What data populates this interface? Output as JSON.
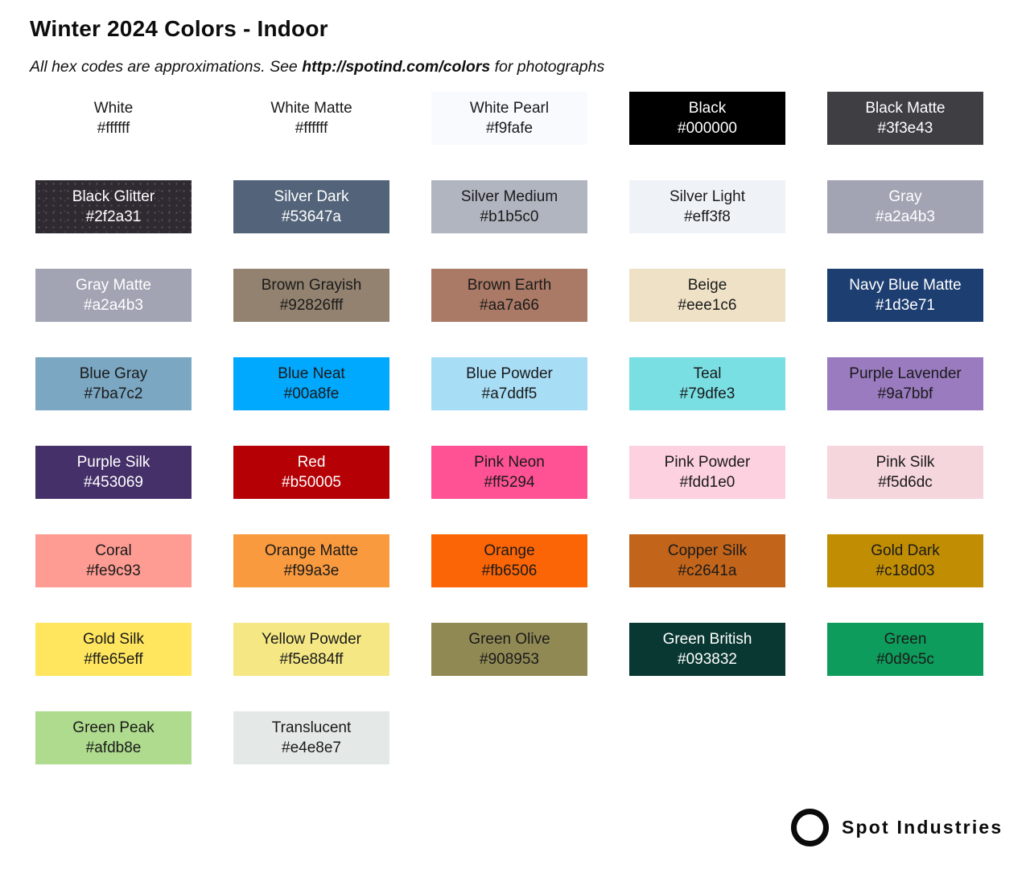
{
  "header": {
    "title": "Winter 2024 Colors - Indoor",
    "subtitle_prefix": "All hex codes are approximations. See ",
    "subtitle_link": "http://spotind.com/colors",
    "subtitle_suffix": " for photographs"
  },
  "footer": {
    "brand": "Spot Industries",
    "logo_icon": "circle-ring-icon"
  },
  "text_colors": {
    "dark": "#1a1a1a",
    "light": "#ffffff"
  },
  "swatches": [
    {
      "name": "White",
      "hex": "#ffffff",
      "fill": "#ffffff",
      "text": "dark",
      "texture": "none"
    },
    {
      "name": "White Matte",
      "hex": "#ffffff",
      "fill": "#ffffff",
      "text": "dark",
      "texture": "none"
    },
    {
      "name": "White Pearl",
      "hex": "#f9fafe",
      "fill": "#f9fafe",
      "text": "dark",
      "texture": "none"
    },
    {
      "name": "Black",
      "hex": "#000000",
      "fill": "#000000",
      "text": "light",
      "texture": "none"
    },
    {
      "name": "Black Matte",
      "hex": "#3f3e43",
      "fill": "#3f3e43",
      "text": "light",
      "texture": "none"
    },
    {
      "name": "Black Glitter",
      "hex": "#2f2a31",
      "fill": "#2f2a31",
      "text": "light",
      "texture": "glitter"
    },
    {
      "name": "Silver Dark",
      "hex": "#53647a",
      "fill": "#53647a",
      "text": "light",
      "texture": "none"
    },
    {
      "name": "Silver Medium",
      "hex": "#b1b5c0",
      "fill": "#b1b5c0",
      "text": "dark",
      "texture": "none"
    },
    {
      "name": "Silver Light",
      "hex": "#eff3f8",
      "fill": "#eff3f8",
      "text": "dark",
      "texture": "none"
    },
    {
      "name": "Gray",
      "hex": "#a2a4b3",
      "fill": "#a2a4b3",
      "text": "light",
      "texture": "none"
    },
    {
      "name": "Gray Matte",
      "hex": "#a2a4b3",
      "fill": "#a2a4b3",
      "text": "light",
      "texture": "none"
    },
    {
      "name": "Brown Grayish",
      "hex": "#92826fff",
      "fill": "#92826f",
      "text": "dark",
      "texture": "none"
    },
    {
      "name": "Brown Earth",
      "hex": "#aa7a66",
      "fill": "#aa7a66",
      "text": "dark",
      "texture": "none"
    },
    {
      "name": "Beige",
      "hex": "#eee1c6",
      "fill": "#eee1c6",
      "text": "dark",
      "texture": "none"
    },
    {
      "name": "Navy Blue Matte",
      "hex": "#1d3e71",
      "fill": "#1d3e71",
      "text": "light",
      "texture": "none"
    },
    {
      "name": "Blue Gray",
      "hex": "#7ba7c2",
      "fill": "#7ba7c2",
      "text": "dark",
      "texture": "none"
    },
    {
      "name": "Blue Neat",
      "hex": "#00a8fe",
      "fill": "#00a8fe",
      "text": "dark",
      "texture": "none"
    },
    {
      "name": "Blue Powder",
      "hex": "#a7ddf5",
      "fill": "#a7ddf5",
      "text": "dark",
      "texture": "none"
    },
    {
      "name": "Teal",
      "hex": "#79dfe3",
      "fill": "#79dfe3",
      "text": "dark",
      "texture": "none"
    },
    {
      "name": "Purple Lavender",
      "hex": "#9a7bbf",
      "fill": "#9a7bbf",
      "text": "dark",
      "texture": "none"
    },
    {
      "name": "Purple Silk",
      "hex": "#453069",
      "fill": "#453069",
      "text": "light",
      "texture": "none"
    },
    {
      "name": "Red",
      "hex": "#b50005",
      "fill": "#b50005",
      "text": "light",
      "texture": "none"
    },
    {
      "name": "Pink Neon",
      "hex": "#ff5294",
      "fill": "#ff5294",
      "text": "dark",
      "texture": "none"
    },
    {
      "name": "Pink Powder",
      "hex": "#fdd1e0",
      "fill": "#fdd1e0",
      "text": "dark",
      "texture": "none"
    },
    {
      "name": "Pink Silk",
      "hex": "#f5d6dc",
      "fill": "#f5d6dc",
      "text": "dark",
      "texture": "none"
    },
    {
      "name": "Coral",
      "hex": "#fe9c93",
      "fill": "#fe9c93",
      "text": "dark",
      "texture": "none"
    },
    {
      "name": "Orange Matte",
      "hex": "#f99a3e",
      "fill": "#f99a3e",
      "text": "dark",
      "texture": "none"
    },
    {
      "name": "Orange",
      "hex": "#fb6506",
      "fill": "#fb6506",
      "text": "dark",
      "texture": "none"
    },
    {
      "name": "Copper Silk",
      "hex": "#c2641a",
      "fill": "#c2641a",
      "text": "dark",
      "texture": "none"
    },
    {
      "name": "Gold Dark",
      "hex": "#c18d03",
      "fill": "#c18d03",
      "text": "dark",
      "texture": "none"
    },
    {
      "name": "Gold Silk",
      "hex": "#ffe65eff",
      "fill": "#ffe65e",
      "text": "dark",
      "texture": "none"
    },
    {
      "name": "Yellow Powder",
      "hex": "#f5e884ff",
      "fill": "#f5e884",
      "text": "dark",
      "texture": "none"
    },
    {
      "name": "Green Olive",
      "hex": "#908953",
      "fill": "#908953",
      "text": "dark",
      "texture": "none"
    },
    {
      "name": "Green British",
      "hex": "#093832",
      "fill": "#093832",
      "text": "light",
      "texture": "none"
    },
    {
      "name": "Green",
      "hex": "#0d9c5c",
      "fill": "#0d9c5c",
      "text": "dark",
      "texture": "none"
    },
    {
      "name": "Green Peak",
      "hex": "#afdb8e",
      "fill": "#afdb8e",
      "text": "dark",
      "texture": "none"
    },
    {
      "name": "Translucent",
      "hex": "#e4e8e7",
      "fill": "#e4e8e7",
      "text": "dark",
      "texture": "none"
    }
  ]
}
